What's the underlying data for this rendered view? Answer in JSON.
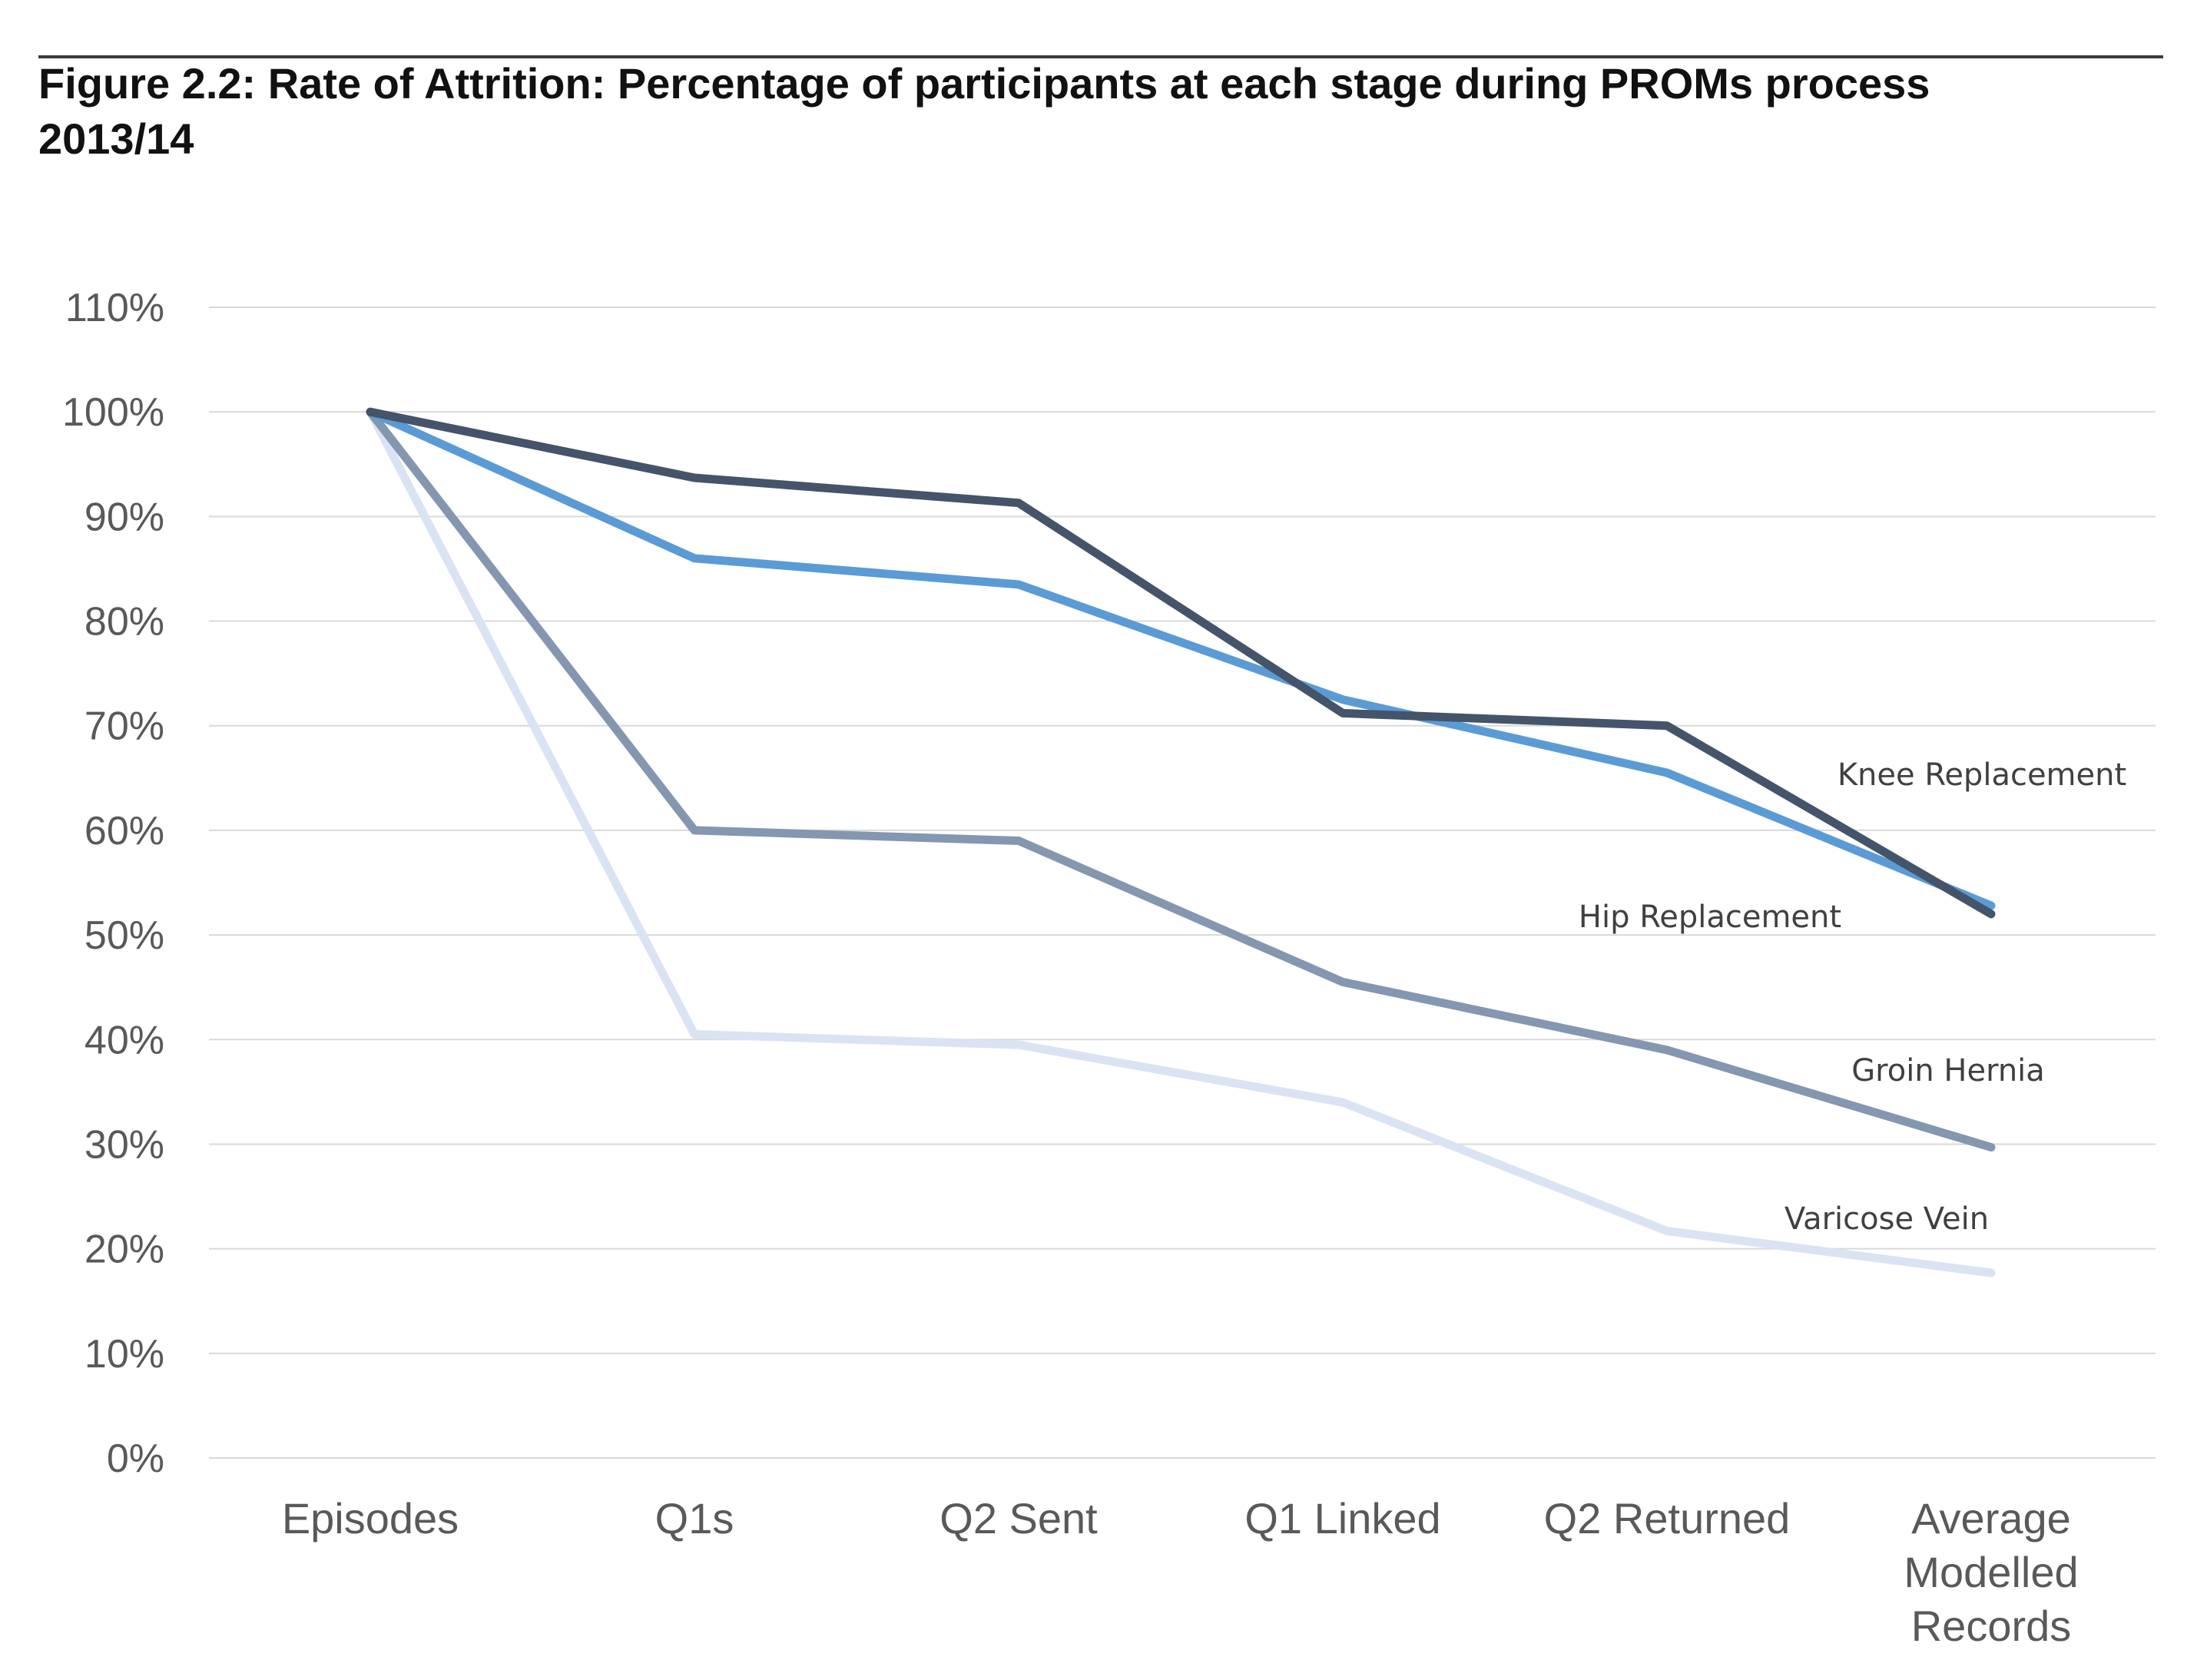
{
  "chart_data": {
    "type": "line",
    "title": "Figure 2.2: Rate of Attrition:  Percentage of participants at each stage during PROMs process",
    "subtitle": "2013/14",
    "xlabel": "",
    "ylabel": "",
    "categories": [
      [
        "Episodes"
      ],
      [
        "Q1s"
      ],
      [
        "Q2 Sent"
      ],
      [
        "Q1 Linked"
      ],
      [
        "Q2 Returned"
      ],
      [
        "Average",
        "Modelled",
        "Records"
      ]
    ],
    "ylim": [
      0,
      110
    ],
    "yticks": [
      0,
      10,
      20,
      30,
      40,
      50,
      60,
      70,
      80,
      90,
      100,
      110
    ],
    "ytick_labels": [
      "0%",
      "10%",
      "20%",
      "30%",
      "40%",
      "50%",
      "60%",
      "70%",
      "80%",
      "90%",
      "100%",
      "110%"
    ],
    "grid": true,
    "legend": "inline labels near line ends",
    "series": [
      {
        "name": "Varicose Vein",
        "color": "#dae3f3",
        "values": [
          100,
          40.5,
          39.5,
          34,
          21.7,
          17.7
        ]
      },
      {
        "name": "Groin Hernia",
        "color": "#8497b0",
        "values": [
          100,
          60,
          59,
          45.5,
          39,
          29.7
        ]
      },
      {
        "name": "Hip Replacement",
        "color": "#5b9bd5",
        "values": [
          100,
          86,
          83.5,
          72.5,
          65.5,
          52.8
        ]
      },
      {
        "name": "Knee Replacement",
        "color": "#44546a",
        "values": [
          100,
          93.7,
          91.3,
          71.2,
          70,
          52
        ]
      }
    ]
  }
}
